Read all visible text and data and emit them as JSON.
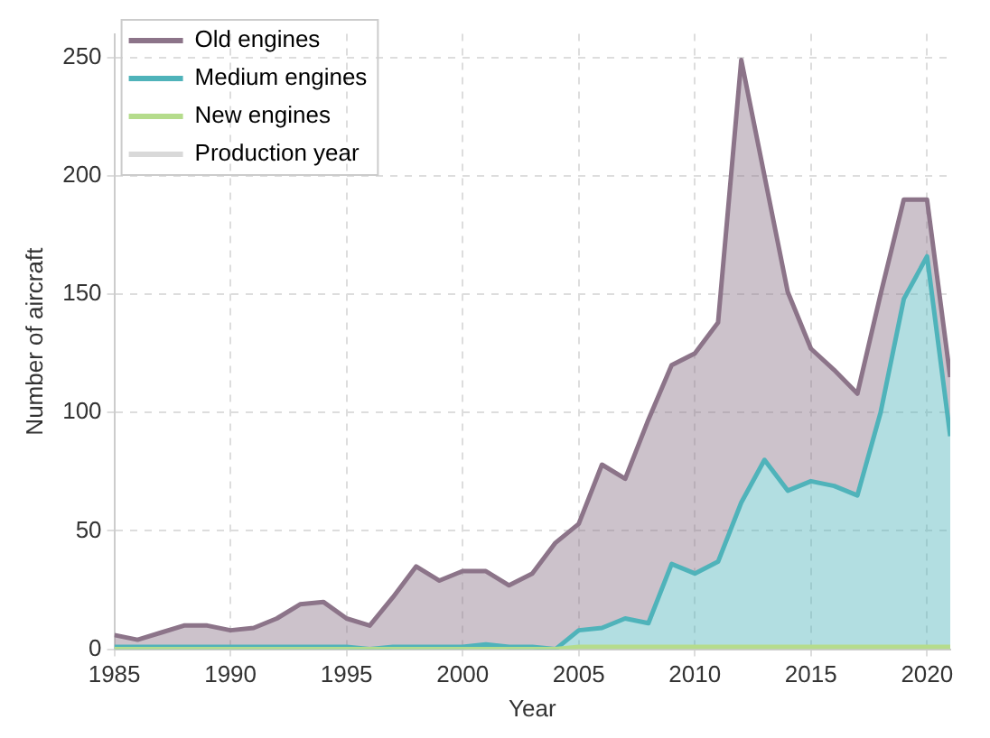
{
  "chart_data": {
    "type": "area",
    "stacked": true,
    "xlabel": "Year",
    "ylabel": "Number of aircraft",
    "x": [
      1985,
      1986,
      1987,
      1988,
      1989,
      1990,
      1991,
      1992,
      1993,
      1994,
      1995,
      1996,
      1997,
      1998,
      1999,
      2000,
      2001,
      2002,
      2003,
      2004,
      2005,
      2006,
      2007,
      2008,
      2009,
      2010,
      2011,
      2012,
      2013,
      2014,
      2015,
      2016,
      2017,
      2018,
      2019,
      2020,
      2021
    ],
    "series": [
      {
        "name": "New engines",
        "color": "#b5dc8c",
        "values": [
          0,
          0,
          0,
          0,
          0,
          0,
          0,
          0,
          0,
          0,
          0,
          0,
          0,
          0,
          0,
          0,
          0,
          0,
          0,
          0,
          1,
          1,
          1,
          1,
          1,
          1,
          1,
          1,
          1,
          1,
          1,
          1,
          1,
          1,
          1,
          1,
          1
        ]
      },
      {
        "name": "Medium engines",
        "color": "#4fb3ba",
        "values": [
          1,
          1,
          1,
          1,
          1,
          1,
          1,
          1,
          1,
          1,
          1,
          0,
          1,
          1,
          1,
          1,
          2,
          1,
          1,
          0,
          7,
          8,
          12,
          10,
          35,
          31,
          36,
          61,
          79,
          66,
          70,
          68,
          64,
          99,
          147,
          165,
          89
        ]
      },
      {
        "name": "Old engines",
        "color": "#8c7489",
        "values": [
          5,
          3,
          6,
          9,
          9,
          7,
          8,
          12,
          18,
          19,
          12,
          10,
          21,
          34,
          28,
          32,
          31,
          26,
          31,
          45,
          45,
          69,
          59,
          86,
          84,
          93,
          101,
          187,
          120,
          84,
          56,
          49,
          43,
          50,
          42,
          24,
          25
        ]
      },
      {
        "name": "Production year",
        "type": "line",
        "color": "#d9d9d9",
        "values": [
          null,
          null,
          null,
          null,
          null,
          null,
          null,
          null,
          null,
          null,
          null,
          null,
          null,
          null,
          null,
          null,
          null,
          null,
          null,
          null,
          null,
          null,
          null,
          null,
          null,
          null,
          null,
          null,
          null,
          null,
          null,
          null,
          null,
          null,
          null,
          null,
          null
        ]
      }
    ],
    "xlim": [
      1985,
      2021
    ],
    "xticks": [
      1985,
      1990,
      1995,
      2000,
      2005,
      2010,
      2015,
      2020
    ],
    "ylim": [
      0,
      260
    ],
    "yticks": [
      0,
      50,
      100,
      150,
      200,
      250
    ],
    "grid": true,
    "line_style": "solid",
    "marker": "none",
    "legend": "top left"
  }
}
